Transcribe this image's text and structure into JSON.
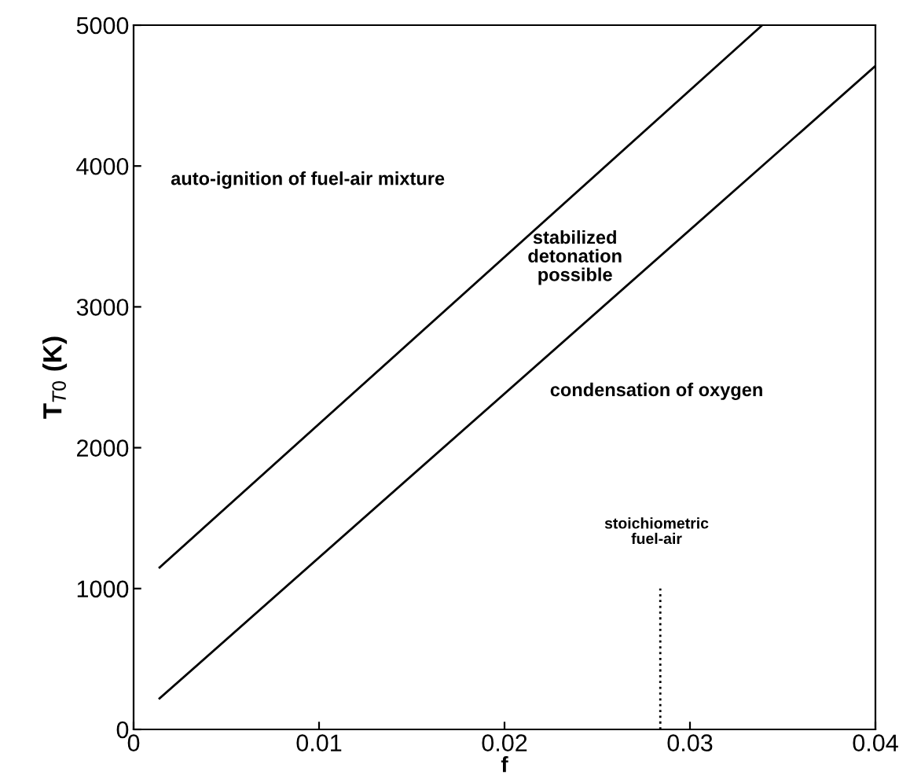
{
  "chart_data": {
    "type": "line",
    "xlabel": "f",
    "ylabel": "T$_{T0}$ (K)",
    "xlim": [
      0,
      0.04
    ],
    "ylim": [
      0,
      5000
    ],
    "xticks": [
      0,
      0.01,
      0.02,
      0.03,
      0.04
    ],
    "yticks": [
      0,
      1000,
      2000,
      3000,
      4000,
      5000
    ],
    "grid": false,
    "marker": "none",
    "series": [
      {
        "color": "#000000",
        "x": [
          0.0014,
          0.0339
        ],
        "values": [
          1150,
          5000
        ],
        "line_style": "solid"
      },
      {
        "color": "#000000",
        "x": [
          0.0014,
          0.04
        ],
        "values": [
          220,
          4710
        ],
        "line_style": "solid"
      },
      {
        "color": "#000000",
        "x": [
          0.0284,
          0.0284
        ],
        "values": [
          0,
          1000
        ],
        "line_style": "dotted"
      }
    ],
    "annotations": [
      "auto-ignition of fuel-air mixture",
      "stabilized\ndetonation\npossible",
      "condensation of oxygen",
      "stoichiometric\nfuel-air"
    ]
  }
}
